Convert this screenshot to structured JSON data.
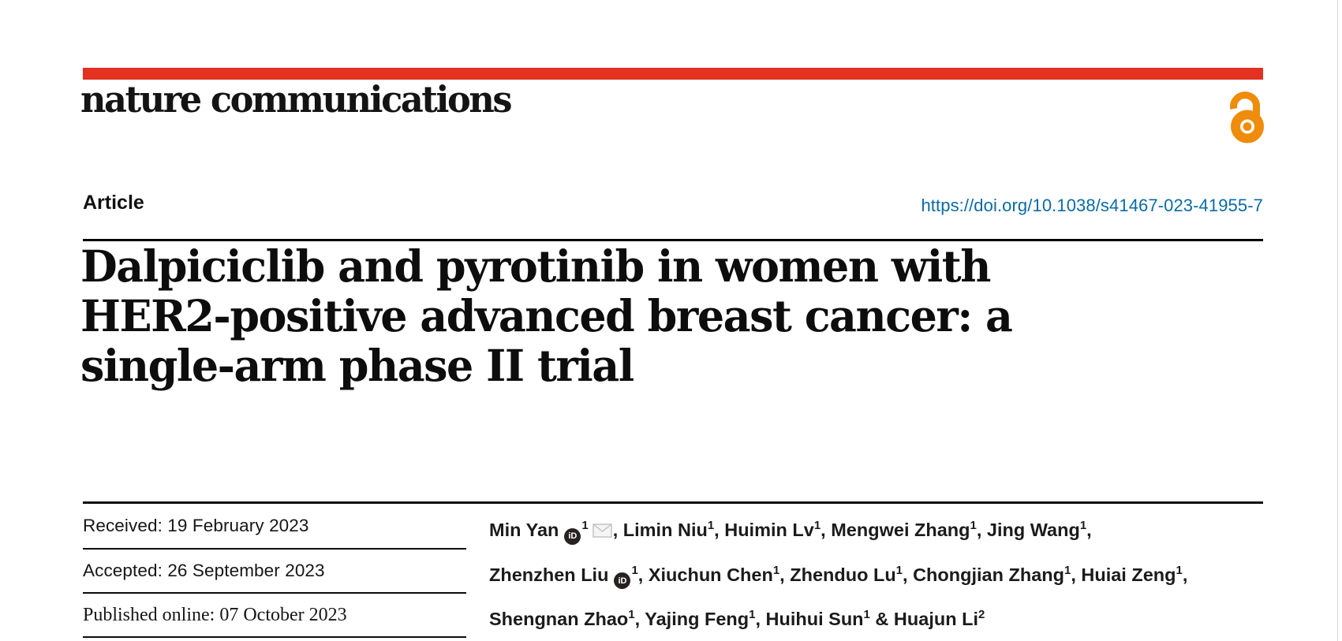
{
  "brand": {
    "logo_text": "nature communications",
    "accent_red": "#e33122",
    "link_blue": "#0b6ba5",
    "open_access_orange": "#ef8c0c"
  },
  "header": {
    "article_label": "Article",
    "doi_text": "https://doi.org/10.1038/s41467-023-41955-7"
  },
  "title_lines": [
    "Dalpiciclib and pyrotinib in women with",
    "HER2-positive advanced breast cancer: a",
    "single-arm phase II trial"
  ],
  "dates": [
    {
      "label": "Received",
      "value": "19 February 2023",
      "serif": false
    },
    {
      "label": "Accepted",
      "value": "26 September 2023",
      "serif": false
    },
    {
      "label": "Published online",
      "value": "07 October 2023",
      "serif": true
    }
  ],
  "icons": {
    "orcid_label": "iD",
    "open_access": "open-access-padlock",
    "email": "envelope"
  },
  "author_lines": [
    [
      {
        "name": "Min Yan",
        "orcid": true,
        "sup": "1",
        "email": true,
        "tail": ", "
      },
      {
        "name": "Limin Niu",
        "sup": "1",
        "tail": ", "
      },
      {
        "name": "Huimin Lv",
        "sup": "1",
        "tail": ", "
      },
      {
        "name": "Mengwei Zhang",
        "sup": "1",
        "tail": ", "
      },
      {
        "name": "Jing Wang",
        "sup": "1",
        "tail": ","
      }
    ],
    [
      {
        "name": "Zhenzhen Liu",
        "orcid": true,
        "sup": "1",
        "tail": ", "
      },
      {
        "name": "Xiuchun Chen",
        "sup": "1",
        "tail": ", "
      },
      {
        "name": "Zhenduo Lu",
        "sup": "1",
        "tail": ", "
      },
      {
        "name": "Chongjian Zhang",
        "sup": "1",
        "tail": ", "
      },
      {
        "name": "Huiai Zeng",
        "sup": "1",
        "tail": ","
      }
    ],
    [
      {
        "name": "Shengnan Zhao",
        "sup": "1",
        "tail": ", "
      },
      {
        "name": "Yajing Feng",
        "sup": "1",
        "tail": ", "
      },
      {
        "name": "Huihui Sun",
        "sup": "1",
        "tail": " & "
      },
      {
        "name": "Huajun Li",
        "sup": "2",
        "tail": ""
      }
    ]
  ]
}
